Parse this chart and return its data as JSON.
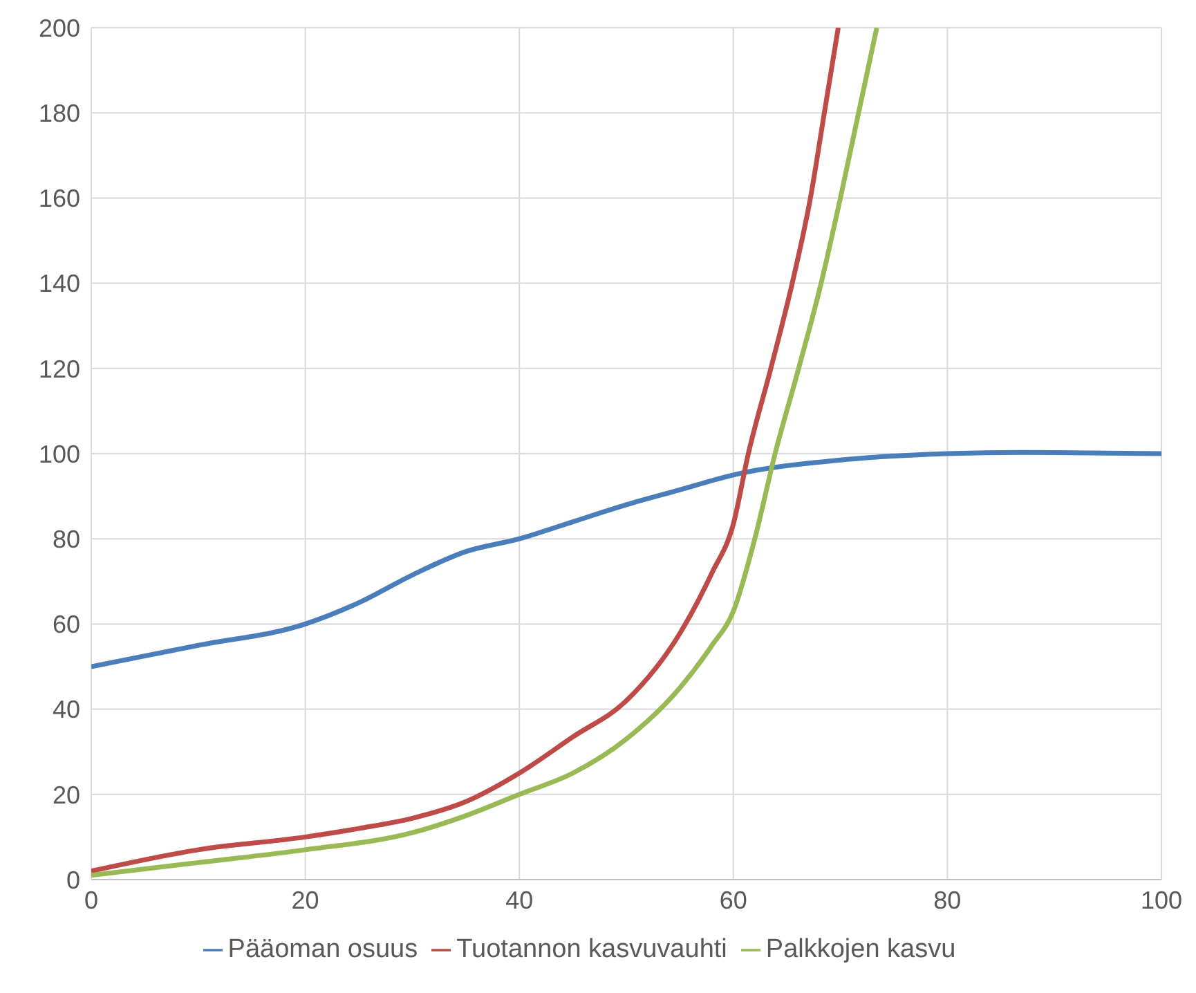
{
  "chart_data": {
    "type": "line",
    "xlim": [
      0,
      100
    ],
    "xticks": [
      0,
      20,
      40,
      60,
      80,
      100
    ],
    "ylim": [
      0,
      200
    ],
    "yticks": [
      0,
      20,
      40,
      60,
      80,
      100,
      120,
      140,
      160,
      180,
      200
    ],
    "grid": true,
    "legend": "bottom",
    "marker": "none",
    "line_style": "solid",
    "series": [
      {
        "name": "Pääoman osuus",
        "color": "#4a7ebb",
        "x": [
          0,
          10,
          20,
          25,
          30,
          35,
          40,
          45,
          50,
          55,
          60,
          70,
          80,
          87,
          100
        ],
        "values": [
          50,
          55,
          60,
          65,
          71.5,
          77,
          80,
          84,
          88,
          91.5,
          95,
          98.5,
          100,
          100.3,
          100
        ]
      },
      {
        "name": "Tuotannon kasvuvauhti",
        "color": "#be4b48",
        "x": [
          0,
          10,
          20,
          25,
          30,
          35,
          40,
          45,
          50,
          55,
          58,
          60,
          61.4,
          63.5,
          65.5,
          67.2,
          68.5,
          69.8
        ],
        "values": [
          2,
          7,
          10,
          12,
          14.4,
          18.3,
          25,
          33.5,
          42,
          57.8,
          72,
          83.5,
          100,
          120,
          140,
          160,
          180,
          200
        ]
      },
      {
        "name": "Palkkojen kasvu",
        "color": "#98b954",
        "x": [
          0,
          10,
          20,
          30,
          35,
          40,
          45,
          50,
          55,
          58,
          60,
          62,
          63.9,
          66.1,
          68.2,
          70,
          71.7,
          73.4
        ],
        "values": [
          1,
          4,
          7,
          11,
          15,
          20,
          25,
          33,
          45,
          55,
          63,
          80,
          100,
          120,
          140,
          160,
          180,
          200
        ]
      }
    ]
  }
}
